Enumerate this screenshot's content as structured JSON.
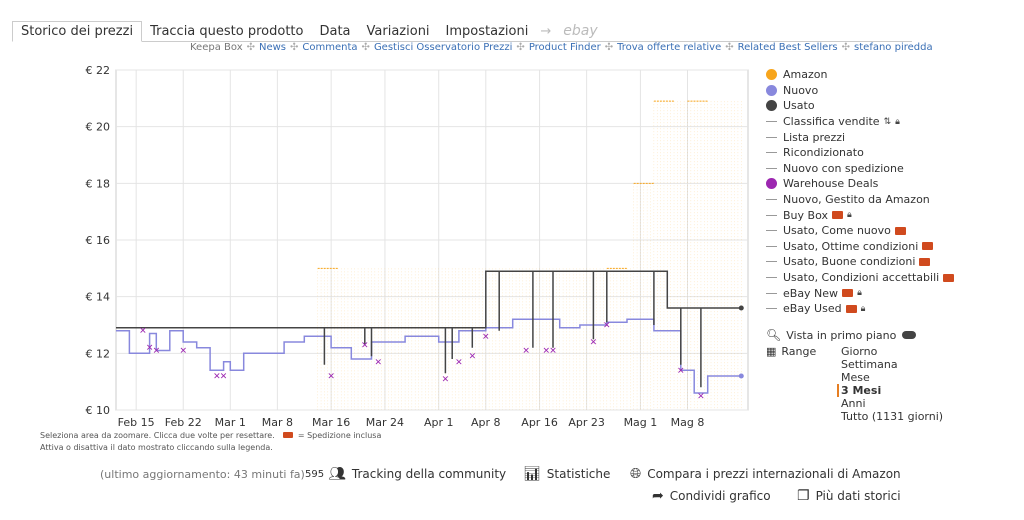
{
  "tabs": [
    {
      "label": "Storico dei prezzi",
      "active": true
    },
    {
      "label": "Traccia questo prodotto"
    },
    {
      "label": "Data"
    },
    {
      "label": "Variazioni"
    },
    {
      "label": "Impostazioni"
    }
  ],
  "tab_arrow": "→",
  "tab_ebay": "ebay",
  "links": [
    "Keepa Box",
    "News",
    "Commenta",
    "Gestisci Osservatorio Prezzi",
    "Product Finder",
    "Trova offerte relative",
    "Related Best Sellers",
    "stefano piredda"
  ],
  "link_separator": "✣",
  "legend": [
    {
      "label": "Amazon",
      "kind": "dot",
      "color": "#f7a51c"
    },
    {
      "label": "Nuovo",
      "kind": "dot",
      "color": "#8888dd"
    },
    {
      "label": "Usato",
      "kind": "dot",
      "color": "#444444"
    },
    {
      "label": "Classifica vendite",
      "kind": "line",
      "sort": true,
      "lock": true
    },
    {
      "label": "Lista prezzi",
      "kind": "line"
    },
    {
      "label": "Ricondizionato",
      "kind": "line"
    },
    {
      "label": "Nuovo con spedizione",
      "kind": "line"
    },
    {
      "label": "Warehouse Deals",
      "kind": "dot",
      "color": "#9c27b0"
    },
    {
      "label": "Nuovo, Gestito da Amazon",
      "kind": "line"
    },
    {
      "label": "Buy Box",
      "kind": "line",
      "truck": true,
      "lock": true
    },
    {
      "label": "Usato, Come nuovo",
      "kind": "line",
      "truck": true
    },
    {
      "label": "Usato, Ottime condizioni",
      "kind": "line",
      "truck": true
    },
    {
      "label": "Usato, Buone condizioni",
      "kind": "line",
      "truck": true
    },
    {
      "label": "Usato, Condizioni accettabili",
      "kind": "line",
      "truck": true
    },
    {
      "label": "eBay New",
      "kind": "line",
      "truck": true,
      "lock": true
    },
    {
      "label": "eBay Used",
      "kind": "line",
      "truck": true,
      "lock": true
    }
  ],
  "options": {
    "foreground_label": "Vista in primo piano",
    "range_label": "Range",
    "ranges": [
      "Giorno",
      "Settimana",
      "Mese",
      "3 Mesi",
      "Anni",
      "Tutto (1131 giorni)"
    ],
    "selected_range": "3 Mesi"
  },
  "notes": {
    "line1": "Seleziona area da zoomare. Clicca due volte per resettare.",
    "shipping": "= Spedizione inclusa",
    "line2": "Attiva o disattiva il dato mostrato cliccando sulla legenda."
  },
  "footer": {
    "updated": "(ultimo aggiornamento: 43 minuti fa)",
    "community_count": "595",
    "community": "Tracking della community",
    "stats": "Statistiche",
    "compare": "Compara i prezzi internazionali di Amazon",
    "share": "Condividi grafico",
    "more": "Più dati storici"
  },
  "colors": {
    "amazon": "#f7a51c",
    "new": "#8888dd",
    "used": "#444444",
    "warehouse": "#9c27b0",
    "grid": "#e4e4e4"
  },
  "chart_data": {
    "type": "line",
    "y_tick_labels": [
      "€ 10",
      "€ 12",
      "€ 14",
      "€ 16",
      "€ 18",
      "€ 20",
      "€ 22"
    ],
    "ylim": [
      10,
      22
    ],
    "y_ticks": [
      10,
      12,
      14,
      16,
      18,
      20,
      22
    ],
    "x_tick_labels": [
      "Feb 15",
      "Feb 22",
      "Mar 1",
      "Mar 8",
      "Mar 16",
      "Mar 24",
      "Apr 1",
      "Apr 8",
      "Apr 16",
      "Apr 23",
      "Mag 1",
      "Mag 8"
    ],
    "x_tick_days": [
      0,
      7,
      14,
      21,
      29,
      37,
      45,
      52,
      60,
      67,
      75,
      82
    ],
    "xlim_days": [
      -3,
      91
    ],
    "series": [
      {
        "name": "Nuovo",
        "values": [
          [
            -3,
            12.8
          ],
          [
            -1,
            12.8
          ],
          [
            -1,
            12.0
          ],
          [
            2,
            12.0
          ],
          [
            2,
            12.7
          ],
          [
            3,
            12.7
          ],
          [
            3,
            12.1
          ],
          [
            5,
            12.1
          ],
          [
            5,
            12.8
          ],
          [
            7,
            12.8
          ],
          [
            7,
            12.4
          ],
          [
            9,
            12.4
          ],
          [
            9,
            12.2
          ],
          [
            11,
            12.2
          ],
          [
            11,
            11.4
          ],
          [
            13,
            11.4
          ],
          [
            13,
            11.7
          ],
          [
            14,
            11.7
          ],
          [
            14,
            11.4
          ],
          [
            16,
            11.4
          ],
          [
            16,
            12.0
          ],
          [
            22,
            12.0
          ],
          [
            22,
            12.4
          ],
          [
            25,
            12.4
          ],
          [
            25,
            12.6
          ],
          [
            29,
            12.6
          ],
          [
            29,
            12.2
          ],
          [
            32,
            12.2
          ],
          [
            32,
            11.8
          ],
          [
            35,
            11.8
          ],
          [
            35,
            12.4
          ],
          [
            40,
            12.4
          ],
          [
            40,
            12.6
          ],
          [
            45,
            12.6
          ],
          [
            45,
            12.4
          ],
          [
            48,
            12.4
          ],
          [
            48,
            12.8
          ],
          [
            52,
            12.8
          ],
          [
            52,
            12.9
          ],
          [
            56,
            12.9
          ],
          [
            56,
            13.2
          ],
          [
            63,
            13.2
          ],
          [
            63,
            12.9
          ],
          [
            66,
            12.9
          ],
          [
            66,
            13.0
          ],
          [
            70,
            13.0
          ],
          [
            70,
            13.1
          ],
          [
            73,
            13.1
          ],
          [
            73,
            13.2
          ],
          [
            77,
            13.2
          ],
          [
            77,
            12.8
          ],
          [
            81,
            12.8
          ],
          [
            81,
            11.4
          ],
          [
            83,
            11.4
          ],
          [
            83,
            10.6
          ],
          [
            85,
            10.6
          ],
          [
            85,
            11.2
          ],
          [
            90,
            11.2
          ]
        ]
      },
      {
        "name": "Usato",
        "values": [
          [
            -3,
            12.9
          ],
          [
            28,
            12.9
          ],
          [
            28,
            11.6
          ],
          [
            28,
            12.9
          ],
          [
            34,
            12.9
          ],
          [
            34,
            12.3
          ],
          [
            34,
            12.9
          ],
          [
            35,
            12.9
          ],
          [
            35,
            11.9
          ],
          [
            35,
            12.9
          ],
          [
            46,
            12.9
          ],
          [
            46,
            11.3
          ],
          [
            46,
            12.9
          ],
          [
            47,
            12.9
          ],
          [
            47,
            11.8
          ],
          [
            47,
            12.9
          ],
          [
            50,
            12.9
          ],
          [
            50,
            12.2
          ],
          [
            50,
            12.9
          ],
          [
            52,
            12.9
          ],
          [
            52,
            14.9
          ],
          [
            54,
            14.9
          ],
          [
            54,
            12.8
          ],
          [
            54,
            14.9
          ],
          [
            59,
            14.9
          ],
          [
            59,
            12.2
          ],
          [
            59,
            14.9
          ],
          [
            62,
            14.9
          ],
          [
            62,
            12.2
          ],
          [
            62,
            14.9
          ],
          [
            68,
            14.9
          ],
          [
            68,
            12.5
          ],
          [
            68,
            14.9
          ],
          [
            70,
            14.9
          ],
          [
            70,
            13.1
          ],
          [
            70,
            14.9
          ],
          [
            77,
            14.9
          ],
          [
            77,
            13.0
          ],
          [
            77,
            14.9
          ],
          [
            79,
            14.9
          ],
          [
            79,
            13.6
          ],
          [
            81,
            13.6
          ],
          [
            81,
            11.6
          ],
          [
            81,
            13.6
          ],
          [
            84,
            13.6
          ],
          [
            84,
            10.8
          ],
          [
            84,
            13.6
          ],
          [
            90,
            13.6
          ]
        ]
      },
      {
        "name": "Warehouse Deals",
        "values": [
          [
            1,
            12.8
          ],
          [
            2,
            12.2
          ],
          [
            3,
            12.1
          ],
          [
            7,
            12.1
          ],
          [
            12,
            11.2
          ],
          [
            13,
            11.2
          ],
          [
            29,
            11.2
          ],
          [
            34,
            12.3
          ],
          [
            36,
            11.7
          ],
          [
            46,
            11.1
          ],
          [
            48,
            11.7
          ],
          [
            50,
            11.9
          ],
          [
            52,
            12.6
          ],
          [
            58,
            12.1
          ],
          [
            61,
            12.1
          ],
          [
            62,
            12.1
          ],
          [
            68,
            12.4
          ],
          [
            70,
            13.0
          ],
          [
            81,
            11.4
          ],
          [
            84,
            10.5
          ]
        ]
      },
      {
        "name": "Amazon",
        "values": [
          [
            27,
            15.0
          ],
          [
            70,
            15.0
          ],
          [
            74,
            18.0
          ],
          [
            77,
            20.9
          ],
          [
            82,
            20.9
          ]
        ]
      }
    ]
  }
}
